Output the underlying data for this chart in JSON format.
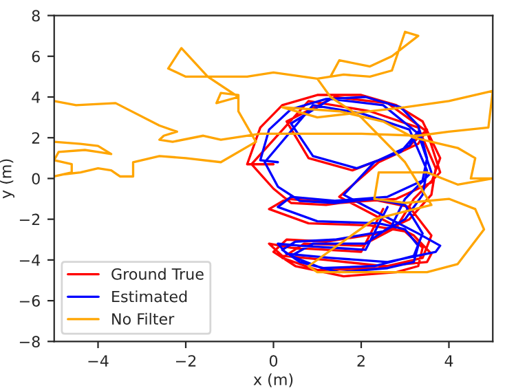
{
  "chart_data": {
    "type": "line",
    "xlabel": "x (m)",
    "ylabel": "y (m)",
    "xlim": [
      -5,
      5
    ],
    "ylim": [
      -8,
      8
    ],
    "xticks": [
      -4,
      -2,
      0,
      2,
      4
    ],
    "yticks": [
      -8,
      -6,
      -4,
      -2,
      0,
      2,
      4,
      6,
      8
    ],
    "grid": false,
    "legend": "bottom left",
    "series": [
      {
        "name": "Ground True",
        "color": "#ff0000",
        "x": [
          0.0,
          -0.6,
          -0.3,
          0.2,
          1.0,
          2.0,
          2.8,
          3.4,
          3.8,
          3.6,
          2.8,
          1.5,
          0.3,
          -0.1,
          0.8,
          2.2,
          3.0,
          3.4,
          3.3,
          2.8,
          1.6,
          0.5,
          0.0,
          0.3,
          1.2,
          2.4,
          3.1,
          3.6,
          3.7,
          3.3,
          2.2,
          0.8,
          -0.5,
          0.0,
          0.4,
          1.2,
          2.2,
          3.1,
          3.6,
          3.4,
          2.4,
          1.0,
          0.2,
          0.7,
          2.0,
          2.8,
          3.2,
          3.8,
          3.5,
          2.6,
          1.4,
          0.3,
          0.8,
          1.8,
          3.0,
          3.5,
          3.3,
          2.4,
          1.5,
          2.3,
          3.2,
          3.6,
          3.5,
          2.5,
          1.2,
          0.2,
          -0.1,
          0.4,
          2.0,
          2.5
        ],
        "values": [
          0.7,
          0.7,
          2.5,
          3.6,
          4.1,
          4.1,
          3.6,
          2.8,
          1.0,
          -0.2,
          -1.0,
          -1.2,
          -1.0,
          -1.5,
          -2.2,
          -2.3,
          -2.6,
          -3.4,
          -4.3,
          -4.6,
          -4.8,
          -4.3,
          -3.6,
          -3.0,
          -3.1,
          -2.7,
          -2.0,
          -0.8,
          0.5,
          2.5,
          3.3,
          3.8,
          0.7,
          -0.5,
          -1.2,
          -1.3,
          -1.0,
          -1.4,
          -2.8,
          -3.9,
          -4.4,
          -4.5,
          -3.9,
          -3.2,
          -3.3,
          -2.4,
          -1.0,
          0.3,
          2.3,
          3.7,
          4.0,
          2.8,
          1.0,
          0.4,
          1.4,
          2.4,
          1.7,
          0.8,
          -0.9,
          -1.8,
          -2.8,
          -3.7,
          -4.1,
          -4.3,
          -4.0,
          -3.8,
          -3.2,
          -3.4,
          -3.6,
          -1.5
        ]
      },
      {
        "name": "Estimated",
        "color": "#0000ff",
        "x": [
          0.1,
          -0.3,
          -0.1,
          0.4,
          1.2,
          2.1,
          2.9,
          3.3,
          3.5,
          3.4,
          2.6,
          1.4,
          0.4,
          0.1,
          1.0,
          2.4,
          3.0,
          3.3,
          3.2,
          2.6,
          1.5,
          0.6,
          0.2,
          0.5,
          1.4,
          2.5,
          3.0,
          3.4,
          3.5,
          3.1,
          2.0,
          0.9,
          -0.2,
          0.1,
          0.6,
          1.4,
          2.3,
          3.0,
          3.4,
          3.2,
          2.3,
          1.1,
          0.4,
          0.9,
          2.1,
          2.7,
          3.0,
          3.6,
          3.3,
          2.5,
          1.3,
          0.4,
          0.9,
          1.9,
          2.9,
          3.3,
          3.1,
          2.3,
          1.6,
          2.4,
          3.3,
          3.8,
          3.7,
          2.6,
          1.3,
          0.3,
          0.1,
          0.6,
          2.1,
          2.6
        ],
        "values": [
          0.8,
          0.9,
          2.4,
          3.4,
          3.9,
          4.0,
          3.5,
          2.6,
          1.0,
          -0.1,
          -0.9,
          -1.1,
          -0.9,
          -1.4,
          -2.1,
          -2.2,
          -2.5,
          -3.3,
          -4.1,
          -4.4,
          -4.6,
          -4.1,
          -3.5,
          -3.1,
          -3.0,
          -2.6,
          -2.0,
          -0.8,
          0.4,
          2.4,
          3.2,
          3.6,
          0.8,
          -0.4,
          -1.1,
          -1.2,
          -1.0,
          -1.3,
          -2.7,
          -3.8,
          -4.3,
          -4.4,
          -3.8,
          -3.2,
          -3.2,
          -2.3,
          -1.0,
          0.3,
          2.2,
          3.6,
          3.9,
          2.7,
          1.1,
          0.5,
          1.3,
          2.3,
          1.6,
          0.8,
          -0.8,
          -1.7,
          -2.7,
          -3.3,
          -3.6,
          -4.1,
          -3.9,
          -3.7,
          -3.2,
          -3.3,
          -3.5,
          -1.4
        ]
      },
      {
        "name": "No Filter",
        "color": "#ffa500",
        "x": [
          -5.0,
          -4.5,
          -3.6,
          -2.6,
          -2.2,
          -2.5,
          -2.6,
          -2.3,
          -1.6,
          -1.2,
          -0.3,
          2.0,
          3.3,
          4.0,
          4.9,
          5.0,
          4.0,
          3.0,
          1.0,
          0.2,
          1.5,
          2.5,
          3.2,
          4.2,
          4.6,
          4.5,
          5.0,
          4.2,
          3.5,
          2.4,
          2.3,
          3.0,
          4.0,
          4.6,
          4.8,
          4.2,
          3.5,
          1.0,
          0.8,
          2.3,
          3.6,
          3.0,
          2.0,
          1.3,
          1.0,
          1.6,
          2.2,
          2.7,
          3.0,
          3.3,
          2.7,
          2.2,
          1.5,
          1.3,
          1.0,
          0.0,
          -0.6,
          -1.5,
          -2.1,
          -2.4,
          -2.0,
          -1.5,
          -0.8,
          -1.3,
          -1.2,
          -0.8,
          -0.8,
          -0.4,
          -1.2,
          -2.0,
          -2.6,
          -3.2,
          -3.2,
          -3.5,
          -3.7,
          -4.0,
          -4.4,
          -4.8,
          -5.0,
          -4.6,
          -4.6,
          -5.0,
          -4.9,
          -4.3,
          -4.0,
          -3.7,
          -4.0,
          -4.4,
          -5.0
        ],
        "values": [
          3.8,
          3.6,
          3.7,
          2.6,
          2.3,
          2.1,
          1.9,
          1.8,
          2.1,
          1.9,
          2.2,
          2.2,
          2.1,
          2.3,
          2.5,
          4.3,
          3.8,
          3.5,
          3.0,
          3.5,
          3.3,
          2.8,
          2.0,
          1.5,
          1.0,
          0.0,
          0.0,
          -0.3,
          0.3,
          0.3,
          -1.0,
          -1.2,
          -1.0,
          -1.5,
          -2.5,
          -4.2,
          -4.6,
          -4.6,
          -4.3,
          -2.0,
          -1.3,
          0.8,
          3.0,
          4.0,
          4.9,
          5.1,
          5.0,
          5.3,
          7.2,
          7.0,
          6.0,
          5.5,
          5.8,
          5.0,
          4.9,
          5.2,
          5.0,
          5.0,
          6.4,
          5.4,
          5.0,
          5.0,
          4.0,
          3.7,
          4.2,
          4.1,
          3.3,
          1.8,
          0.8,
          1.0,
          1.1,
          0.8,
          0.1,
          0.1,
          0.4,
          0.5,
          0.3,
          0.2,
          0.1,
          0.3,
          0.7,
          0.9,
          1.3,
          1.4,
          1.3,
          1.2,
          1.6,
          1.7,
          1.8
        ]
      }
    ]
  }
}
